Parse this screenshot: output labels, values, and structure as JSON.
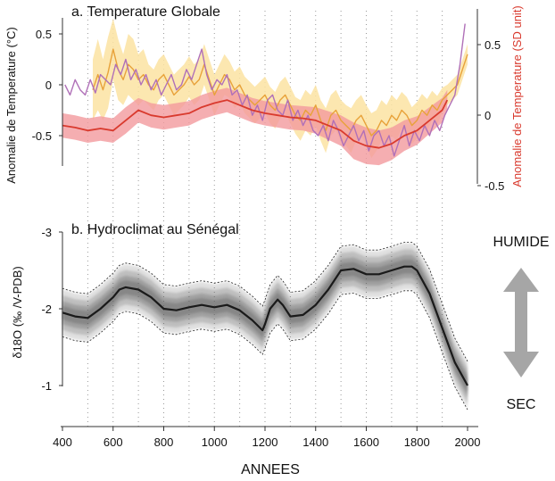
{
  "chart_data": [
    {
      "type": "line",
      "title": "a. Temperature Globale",
      "ylabel": "Anomalie de Temperature (°C)",
      "ylabel_right": "Anomalie de Temperature (SD unit)",
      "x_range": [
        400,
        2000
      ],
      "ylim": [
        -0.75,
        0.6
      ],
      "yticks": [
        "0.5",
        "0",
        "-0.5"
      ],
      "yticks_right": [
        "0.5",
        "0",
        "-0.5"
      ],
      "grid": "vertical dotted lines every 100 years",
      "series": [
        {
          "color": "#e8a23a",
          "band_color": "#fbe3a2",
          "x": [
            520,
            540,
            560,
            580,
            600,
            620,
            640,
            660,
            680,
            700,
            720,
            740,
            760,
            780,
            800,
            820,
            840,
            860,
            880,
            900,
            920,
            940,
            960,
            980,
            1000,
            1020,
            1040,
            1060,
            1080,
            1100,
            1120,
            1140,
            1160,
            1180,
            1200,
            1220,
            1240,
            1260,
            1280,
            1300,
            1320,
            1340,
            1360,
            1380,
            1400,
            1420,
            1440,
            1460,
            1480,
            1500,
            1520,
            1540,
            1560,
            1580,
            1600,
            1620,
            1640,
            1660,
            1680,
            1700,
            1720,
            1740,
            1760,
            1780,
            1800,
            1820,
            1840,
            1860,
            1880,
            1900,
            1920,
            1940,
            1960,
            1980,
            2000
          ],
          "values": [
            -0.05,
            0.1,
            -0.05,
            0.12,
            0.35,
            0.15,
            0.05,
            0.2,
            0.15,
            0.05,
            0.1,
            0.0,
            -0.05,
            0.05,
            0.1,
            0.0,
            -0.1,
            -0.05,
            0.0,
            0.08,
            0.0,
            0.05,
            0.2,
            0.05,
            -0.1,
            0.0,
            0.1,
            0.05,
            -0.05,
            0.0,
            -0.1,
            -0.15,
            -0.2,
            -0.15,
            -0.1,
            -0.2,
            -0.25,
            -0.15,
            -0.1,
            -0.2,
            -0.3,
            -0.35,
            -0.25,
            -0.3,
            -0.2,
            -0.35,
            -0.45,
            -0.3,
            -0.25,
            -0.35,
            -0.4,
            -0.45,
            -0.35,
            -0.3,
            -0.4,
            -0.5,
            -0.45,
            -0.35,
            -0.4,
            -0.3,
            -0.35,
            -0.25,
            -0.3,
            -0.4,
            -0.35,
            -0.25,
            -0.3,
            -0.2,
            -0.25,
            -0.15,
            -0.1,
            -0.05,
            0.0,
            0.15,
            0.3
          ],
          "band_halfwidth": [
            0.3,
            0.35,
            0.3,
            0.35,
            0.3,
            0.3,
            0.25,
            0.3,
            0.3,
            0.25,
            0.25,
            0.2,
            0.2,
            0.2,
            0.2,
            0.2,
            0.2,
            0.2,
            0.2,
            0.2,
            0.2,
            0.2,
            0.2,
            0.2,
            0.2,
            0.2,
            0.2,
            0.18,
            0.18,
            0.18,
            0.18,
            0.18,
            0.18,
            0.18,
            0.18,
            0.18,
            0.18,
            0.18,
            0.18,
            0.18,
            0.18,
            0.2,
            0.2,
            0.2,
            0.2,
            0.2,
            0.22,
            0.2,
            0.2,
            0.2,
            0.2,
            0.22,
            0.2,
            0.2,
            0.2,
            0.22,
            0.2,
            0.2,
            0.2,
            0.2,
            0.2,
            0.18,
            0.18,
            0.18,
            0.18,
            0.16,
            0.16,
            0.14,
            0.14,
            0.12,
            0.1,
            0.1,
            0.1,
            0.1,
            0.1
          ]
        },
        {
          "color": "#b070b8",
          "x": [
            410,
            430,
            450,
            470,
            490,
            510,
            530,
            550,
            570,
            590,
            610,
            630,
            650,
            670,
            690,
            710,
            730,
            750,
            770,
            790,
            810,
            830,
            850,
            870,
            890,
            910,
            930,
            950,
            970,
            990,
            1010,
            1030,
            1050,
            1070,
            1090,
            1110,
            1130,
            1150,
            1170,
            1190,
            1210,
            1230,
            1250,
            1270,
            1290,
            1310,
            1330,
            1350,
            1370,
            1390,
            1410,
            1430,
            1450,
            1470,
            1490,
            1510,
            1530,
            1550,
            1570,
            1590,
            1610,
            1630,
            1650,
            1670,
            1690,
            1710,
            1730,
            1750,
            1770,
            1790,
            1810,
            1830,
            1850,
            1870,
            1890,
            1910,
            1930,
            1950,
            1970,
            1990
          ],
          "values": [
            0.0,
            -0.1,
            0.05,
            -0.05,
            -0.1,
            0.05,
            -0.08,
            0.1,
            0.05,
            0.0,
            0.2,
            0.1,
            0.25,
            0.05,
            0.15,
            0.0,
            0.1,
            -0.05,
            0.05,
            -0.1,
            0.0,
            0.1,
            -0.05,
            0.0,
            0.15,
            0.05,
            0.2,
            0.35,
            0.1,
            -0.05,
            0.05,
            0.0,
            0.1,
            -0.1,
            -0.05,
            -0.2,
            -0.1,
            -0.3,
            -0.2,
            -0.35,
            -0.15,
            -0.1,
            -0.25,
            -0.3,
            -0.15,
            -0.35,
            -0.25,
            -0.4,
            -0.3,
            -0.45,
            -0.5,
            -0.4,
            -0.55,
            -0.35,
            -0.45,
            -0.6,
            -0.5,
            -0.4,
            -0.55,
            -0.45,
            -0.65,
            -0.5,
            -0.45,
            -0.6,
            -0.5,
            -0.7,
            -0.55,
            -0.4,
            -0.6,
            -0.45,
            -0.55,
            -0.4,
            -0.5,
            -0.35,
            -0.45,
            -0.3,
            -0.2,
            -0.1,
            0.2,
            0.6
          ]
        },
        {
          "color": "#d93a2e",
          "band_color": "#f29a9e",
          "x": [
            400,
            450,
            500,
            550,
            600,
            650,
            700,
            750,
            800,
            850,
            900,
            950,
            1000,
            1050,
            1100,
            1150,
            1200,
            1250,
            1300,
            1350,
            1400,
            1450,
            1500,
            1550,
            1600,
            1650,
            1700,
            1750,
            1800,
            1850,
            1900,
            1920
          ],
          "values": [
            -0.4,
            -0.42,
            -0.45,
            -0.43,
            -0.45,
            -0.35,
            -0.25,
            -0.3,
            -0.32,
            -0.3,
            -0.28,
            -0.22,
            -0.18,
            -0.15,
            -0.2,
            -0.25,
            -0.28,
            -0.3,
            -0.32,
            -0.33,
            -0.35,
            -0.4,
            -0.45,
            -0.55,
            -0.6,
            -0.62,
            -0.58,
            -0.5,
            -0.45,
            -0.35,
            -0.25,
            -0.15
          ],
          "band_halfwidth": [
            0.12,
            0.12,
            0.12,
            0.12,
            0.12,
            0.13,
            0.12,
            0.12,
            0.12,
            0.12,
            0.12,
            0.12,
            0.12,
            0.12,
            0.12,
            0.12,
            0.12,
            0.12,
            0.12,
            0.12,
            0.13,
            0.14,
            0.15,
            0.18,
            0.18,
            0.17,
            0.16,
            0.15,
            0.14,
            0.13,
            0.12,
            0.1
          ]
        }
      ]
    },
    {
      "type": "line",
      "title": "b. Hydroclimat au Sénégal",
      "ylabel": "δ18O (‰ /V-PDB)",
      "xlabel": "ANNEES",
      "x_range": [
        400,
        2000
      ],
      "ylim": [
        -3.05,
        -0.6
      ],
      "y_axis_inverted": true,
      "yticks": [
        "-3",
        "-2",
        "-1"
      ],
      "xticks": [
        "400",
        "600",
        "800",
        "1000",
        "1200",
        "1400",
        "1600",
        "1800",
        "2000"
      ],
      "series": [
        {
          "color": "#1a1a1a",
          "band_color": "#888888",
          "band_halfwidth": 0.3,
          "x": [
            400,
            450,
            500,
            550,
            600,
            625,
            650,
            700,
            750,
            800,
            850,
            900,
            950,
            1000,
            1050,
            1100,
            1150,
            1190,
            1200,
            1220,
            1250,
            1270,
            1300,
            1350,
            1400,
            1450,
            1500,
            1550,
            1600,
            1650,
            1700,
            1750,
            1780,
            1800,
            1850,
            1900,
            1950,
            2000
          ],
          "values": [
            -1.95,
            -1.9,
            -1.88,
            -2.0,
            -2.15,
            -2.25,
            -2.28,
            -2.25,
            -2.15,
            -2.0,
            -1.98,
            -2.02,
            -2.05,
            -2.02,
            -2.05,
            -1.98,
            -1.85,
            -1.72,
            -1.8,
            -2.0,
            -2.12,
            -2.05,
            -1.9,
            -1.92,
            -2.05,
            -2.25,
            -2.5,
            -2.52,
            -2.45,
            -2.45,
            -2.5,
            -2.55,
            -2.55,
            -2.5,
            -2.2,
            -1.75,
            -1.3,
            -1.0
          ]
        }
      ]
    }
  ],
  "annotations": {
    "humide": "HUMIDE",
    "sec": "SEC"
  },
  "colors": {
    "axis": "#333333",
    "grid": "#999999",
    "arrow": "#a6a6a6"
  }
}
